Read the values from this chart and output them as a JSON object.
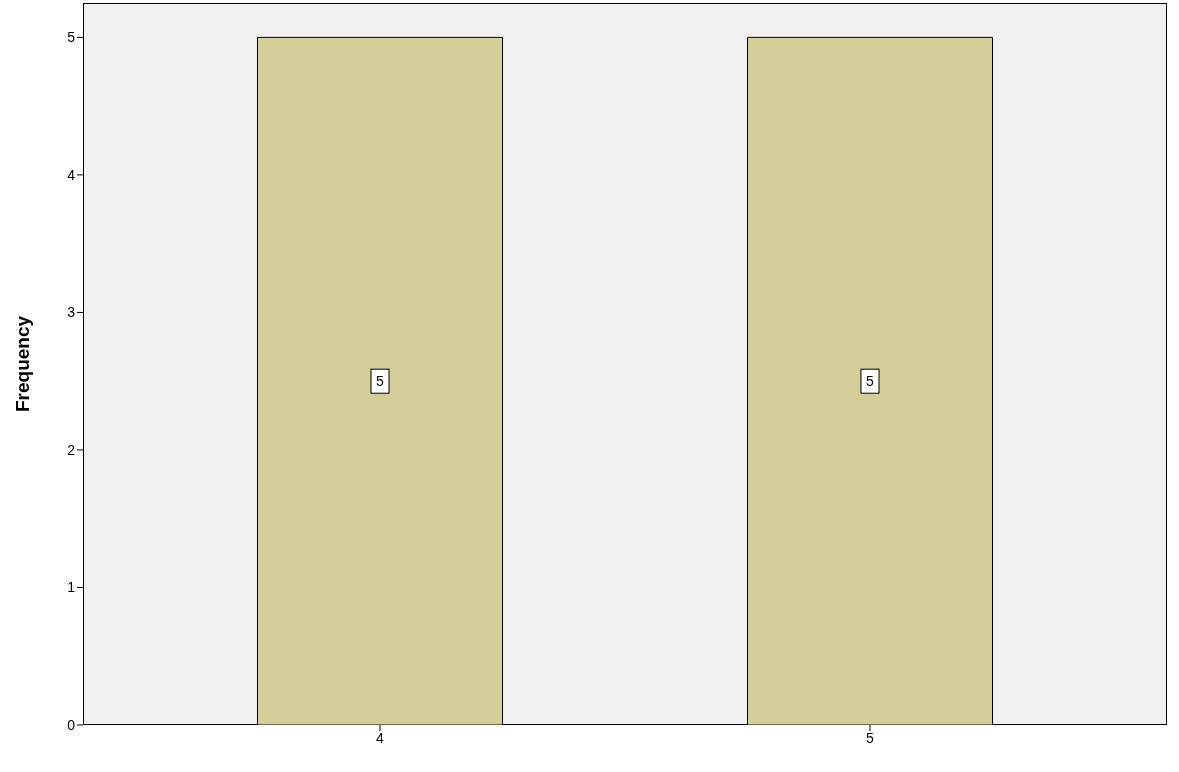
{
  "chart_data": {
    "type": "bar",
    "ylabel": "Frequency",
    "categories": [
      "4",
      "5"
    ],
    "values": [
      5,
      5
    ],
    "color": "#d3ce97",
    "ylim": [
      0,
      5.25
    ],
    "yticks": [
      0,
      1,
      2,
      3,
      4,
      5
    ],
    "grid": false,
    "data_labels": true
  }
}
